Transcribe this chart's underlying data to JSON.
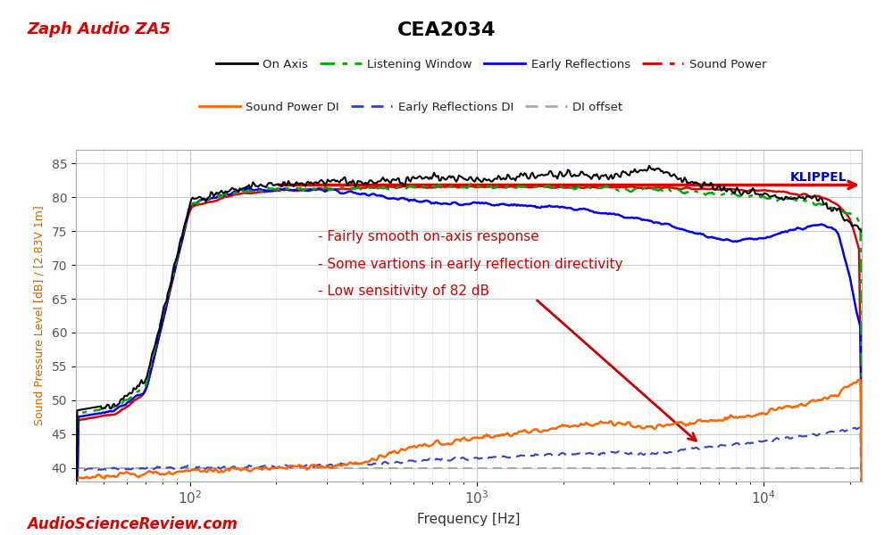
{
  "title": "CEA2034",
  "subtitle": "Zaph Audio ZA5",
  "xlabel": "Frequency [Hz]",
  "ylabel": "Sound Pressure Level [dB] / [2.83V 1m]",
  "xlim": [
    40,
    22000
  ],
  "ylim": [
    38,
    87
  ],
  "yticks": [
    40,
    45,
    50,
    55,
    60,
    65,
    70,
    75,
    80,
    85
  ],
  "plot_bg": "#ffffff",
  "fig_bg": "#ffffff",
  "grid_color": "#cccccc",
  "annotation_color": "#cc0000",
  "annotation_text1": "- Fairly smooth on-axis response",
  "annotation_text2": "- Some vartions in early reflection directivity",
  "annotation_text3": "- Low sensitivity of 82 dB",
  "klippel_text": "KLIPPEL",
  "watermark_text": "AudioScienceReview.com",
  "title_color": "#000000",
  "subtitle_color": "#dd0000",
  "ylabel_color": "#cc6600",
  "xlabel_color": "#333333",
  "klippel_color": "#0000cc",
  "tick_color": "#555555"
}
